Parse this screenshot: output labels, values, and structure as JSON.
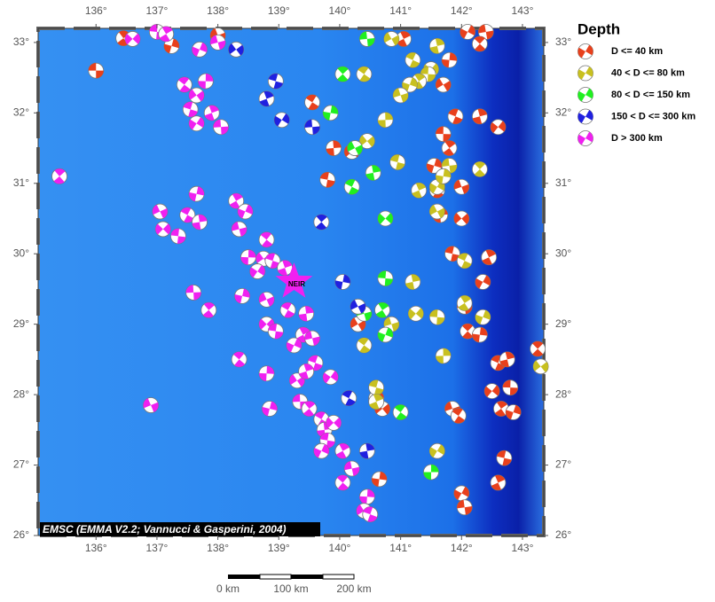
{
  "map": {
    "xlim": [
      135.05,
      143.35
    ],
    "ylim": [
      26,
      33.2
    ],
    "xticks": [
      {
        "value": 136,
        "label": "136°"
      },
      {
        "value": 137,
        "label": "137°"
      },
      {
        "value": 138,
        "label": "138°"
      },
      {
        "value": 139,
        "label": "139°"
      },
      {
        "value": 140,
        "label": "140°"
      },
      {
        "value": 141,
        "label": "141°"
      },
      {
        "value": 142,
        "label": "142°"
      },
      {
        "value": 143,
        "label": "143°"
      }
    ],
    "yticks": [
      {
        "value": 26,
        "label": "26°"
      },
      {
        "value": 27,
        "label": "27°"
      },
      {
        "value": 28,
        "label": "28°"
      },
      {
        "value": 29,
        "label": "29°"
      },
      {
        "value": 30,
        "label": "30°"
      },
      {
        "value": 31,
        "label": "31°"
      },
      {
        "value": 32,
        "label": "32°"
      },
      {
        "value": 33,
        "label": "33°"
      }
    ]
  },
  "legend": {
    "title": "Depth",
    "classes": [
      {
        "label": "D <= 40 km",
        "color": "#e8401c",
        "events": [
          [
            136.0,
            32.6
          ],
          [
            136.45,
            33.06
          ],
          [
            137.24,
            32.95
          ],
          [
            138.0,
            33.1
          ],
          [
            139.55,
            32.15
          ],
          [
            139.9,
            31.5
          ],
          [
            140.2,
            31.45
          ],
          [
            139.8,
            31.05
          ],
          [
            141.05,
            33.05
          ],
          [
            142.1,
            33.15
          ],
          [
            142.4,
            33.15
          ],
          [
            142.3,
            32.98
          ],
          [
            141.8,
            32.75
          ],
          [
            141.7,
            32.4
          ],
          [
            141.9,
            31.95
          ],
          [
            142.3,
            31.95
          ],
          [
            142.6,
            31.8
          ],
          [
            141.7,
            31.7
          ],
          [
            141.8,
            31.5
          ],
          [
            141.55,
            31.25
          ],
          [
            142.0,
            30.95
          ],
          [
            141.6,
            30.9
          ],
          [
            141.65,
            30.55
          ],
          [
            142.0,
            30.5
          ],
          [
            141.85,
            30.0
          ],
          [
            142.45,
            29.95
          ],
          [
            142.35,
            29.6
          ],
          [
            142.05,
            29.25
          ],
          [
            142.1,
            28.9
          ],
          [
            142.3,
            28.85
          ],
          [
            140.3,
            29.0
          ],
          [
            142.6,
            28.45
          ],
          [
            142.75,
            28.5
          ],
          [
            142.5,
            28.05
          ],
          [
            142.8,
            28.1
          ],
          [
            142.65,
            27.8
          ],
          [
            142.85,
            27.75
          ],
          [
            141.85,
            27.8
          ],
          [
            141.95,
            27.7
          ],
          [
            140.6,
            27.95
          ],
          [
            140.7,
            27.8
          ],
          [
            142.7,
            27.1
          ],
          [
            142.6,
            26.75
          ],
          [
            142.0,
            26.6
          ],
          [
            142.05,
            26.4
          ],
          [
            143.25,
            28.65
          ],
          [
            140.65,
            26.8
          ]
        ]
      },
      {
        "label": "40 < D <= 80 km",
        "color": "#c8c020",
        "events": [
          [
            140.85,
            33.05
          ],
          [
            141.2,
            32.75
          ],
          [
            141.6,
            32.95
          ],
          [
            141.5,
            32.62
          ],
          [
            141.45,
            32.55
          ],
          [
            141.3,
            32.45
          ],
          [
            141.15,
            32.4
          ],
          [
            141.0,
            32.25
          ],
          [
            140.4,
            32.55
          ],
          [
            140.75,
            31.9
          ],
          [
            140.45,
            31.6
          ],
          [
            140.95,
            31.3
          ],
          [
            141.3,
            30.9
          ],
          [
            141.6,
            30.95
          ],
          [
            141.8,
            31.25
          ],
          [
            142.3,
            31.2
          ],
          [
            141.7,
            31.1
          ],
          [
            141.6,
            30.6
          ],
          [
            142.05,
            29.9
          ],
          [
            141.2,
            29.6
          ],
          [
            141.25,
            29.15
          ],
          [
            141.6,
            29.1
          ],
          [
            142.05,
            29.3
          ],
          [
            142.35,
            29.1
          ],
          [
            140.85,
            29.0
          ],
          [
            140.4,
            28.7
          ],
          [
            141.7,
            28.55
          ],
          [
            143.3,
            28.4
          ],
          [
            140.6,
            28.1
          ],
          [
            140.6,
            27.9
          ],
          [
            141.6,
            27.2
          ]
        ]
      },
      {
        "label": "80 < D <= 150 km",
        "color": "#20f020",
        "events": [
          [
            140.45,
            33.05
          ],
          [
            140.05,
            32.55
          ],
          [
            139.85,
            32.0
          ],
          [
            140.25,
            31.5
          ],
          [
            140.2,
            30.95
          ],
          [
            140.55,
            31.15
          ],
          [
            140.75,
            30.5
          ],
          [
            140.75,
            29.65
          ],
          [
            140.7,
            29.2
          ],
          [
            140.75,
            28.85
          ],
          [
            140.4,
            29.15
          ],
          [
            141.0,
            27.75
          ],
          [
            141.5,
            26.9
          ]
        ]
      },
      {
        "label": "150 < D <= 300 km",
        "color": "#2020e0",
        "events": [
          [
            138.3,
            32.9
          ],
          [
            138.95,
            32.45
          ],
          [
            138.8,
            32.2
          ],
          [
            139.05,
            31.9
          ],
          [
            139.55,
            31.8
          ],
          [
            139.7,
            30.45
          ],
          [
            140.05,
            29.6
          ],
          [
            140.3,
            29.25
          ],
          [
            140.15,
            27.95
          ],
          [
            140.45,
            27.2
          ]
        ]
      },
      {
        "label": "D > 300 km",
        "color": "#f020f0",
        "events": [
          [
            136.6,
            33.05
          ],
          [
            137.0,
            33.15
          ],
          [
            137.15,
            33.12
          ],
          [
            137.7,
            32.9
          ],
          [
            138.0,
            33.0
          ],
          [
            137.45,
            32.4
          ],
          [
            137.8,
            32.45
          ],
          [
            137.65,
            32.25
          ],
          [
            137.55,
            32.05
          ],
          [
            137.9,
            32.0
          ],
          [
            137.65,
            31.85
          ],
          [
            138.05,
            31.8
          ],
          [
            135.4,
            31.1
          ],
          [
            137.65,
            30.85
          ],
          [
            137.05,
            30.6
          ],
          [
            137.5,
            30.55
          ],
          [
            137.7,
            30.45
          ],
          [
            137.1,
            30.35
          ],
          [
            137.35,
            30.25
          ],
          [
            138.3,
            30.75
          ],
          [
            138.45,
            30.6
          ],
          [
            138.35,
            30.35
          ],
          [
            138.8,
            30.2
          ],
          [
            138.5,
            29.95
          ],
          [
            138.75,
            29.93
          ],
          [
            138.9,
            29.9
          ],
          [
            139.1,
            29.8
          ],
          [
            138.65,
            29.75
          ],
          [
            137.6,
            29.45
          ],
          [
            137.85,
            29.2
          ],
          [
            138.4,
            29.4
          ],
          [
            138.8,
            29.35
          ],
          [
            139.15,
            29.2
          ],
          [
            139.45,
            29.15
          ],
          [
            138.8,
            29.0
          ],
          [
            138.95,
            28.9
          ],
          [
            139.4,
            28.85
          ],
          [
            139.25,
            28.7
          ],
          [
            139.55,
            28.8
          ],
          [
            138.35,
            28.5
          ],
          [
            138.8,
            28.3
          ],
          [
            139.3,
            28.2
          ],
          [
            139.6,
            28.45
          ],
          [
            139.45,
            28.33
          ],
          [
            139.85,
            28.25
          ],
          [
            139.35,
            27.9
          ],
          [
            139.5,
            27.8
          ],
          [
            138.85,
            27.8
          ],
          [
            136.9,
            27.85
          ],
          [
            139.7,
            27.65
          ],
          [
            139.75,
            27.5
          ],
          [
            139.9,
            27.6
          ],
          [
            139.8,
            27.35
          ],
          [
            140.05,
            27.2
          ],
          [
            139.7,
            27.2
          ],
          [
            140.2,
            26.95
          ],
          [
            140.05,
            26.75
          ],
          [
            140.45,
            26.55
          ],
          [
            140.4,
            26.35
          ],
          [
            140.5,
            26.3
          ]
        ]
      }
    ]
  },
  "marker": {
    "label": "NEIR",
    "lon": 139.25,
    "lat": 29.6
  },
  "credit": "EMSC (EMMA V2.2; Vannucci & Gasperini, 2004)",
  "scale_bar": {
    "labels": [
      "0 km",
      "100 km",
      "200 km"
    ]
  }
}
